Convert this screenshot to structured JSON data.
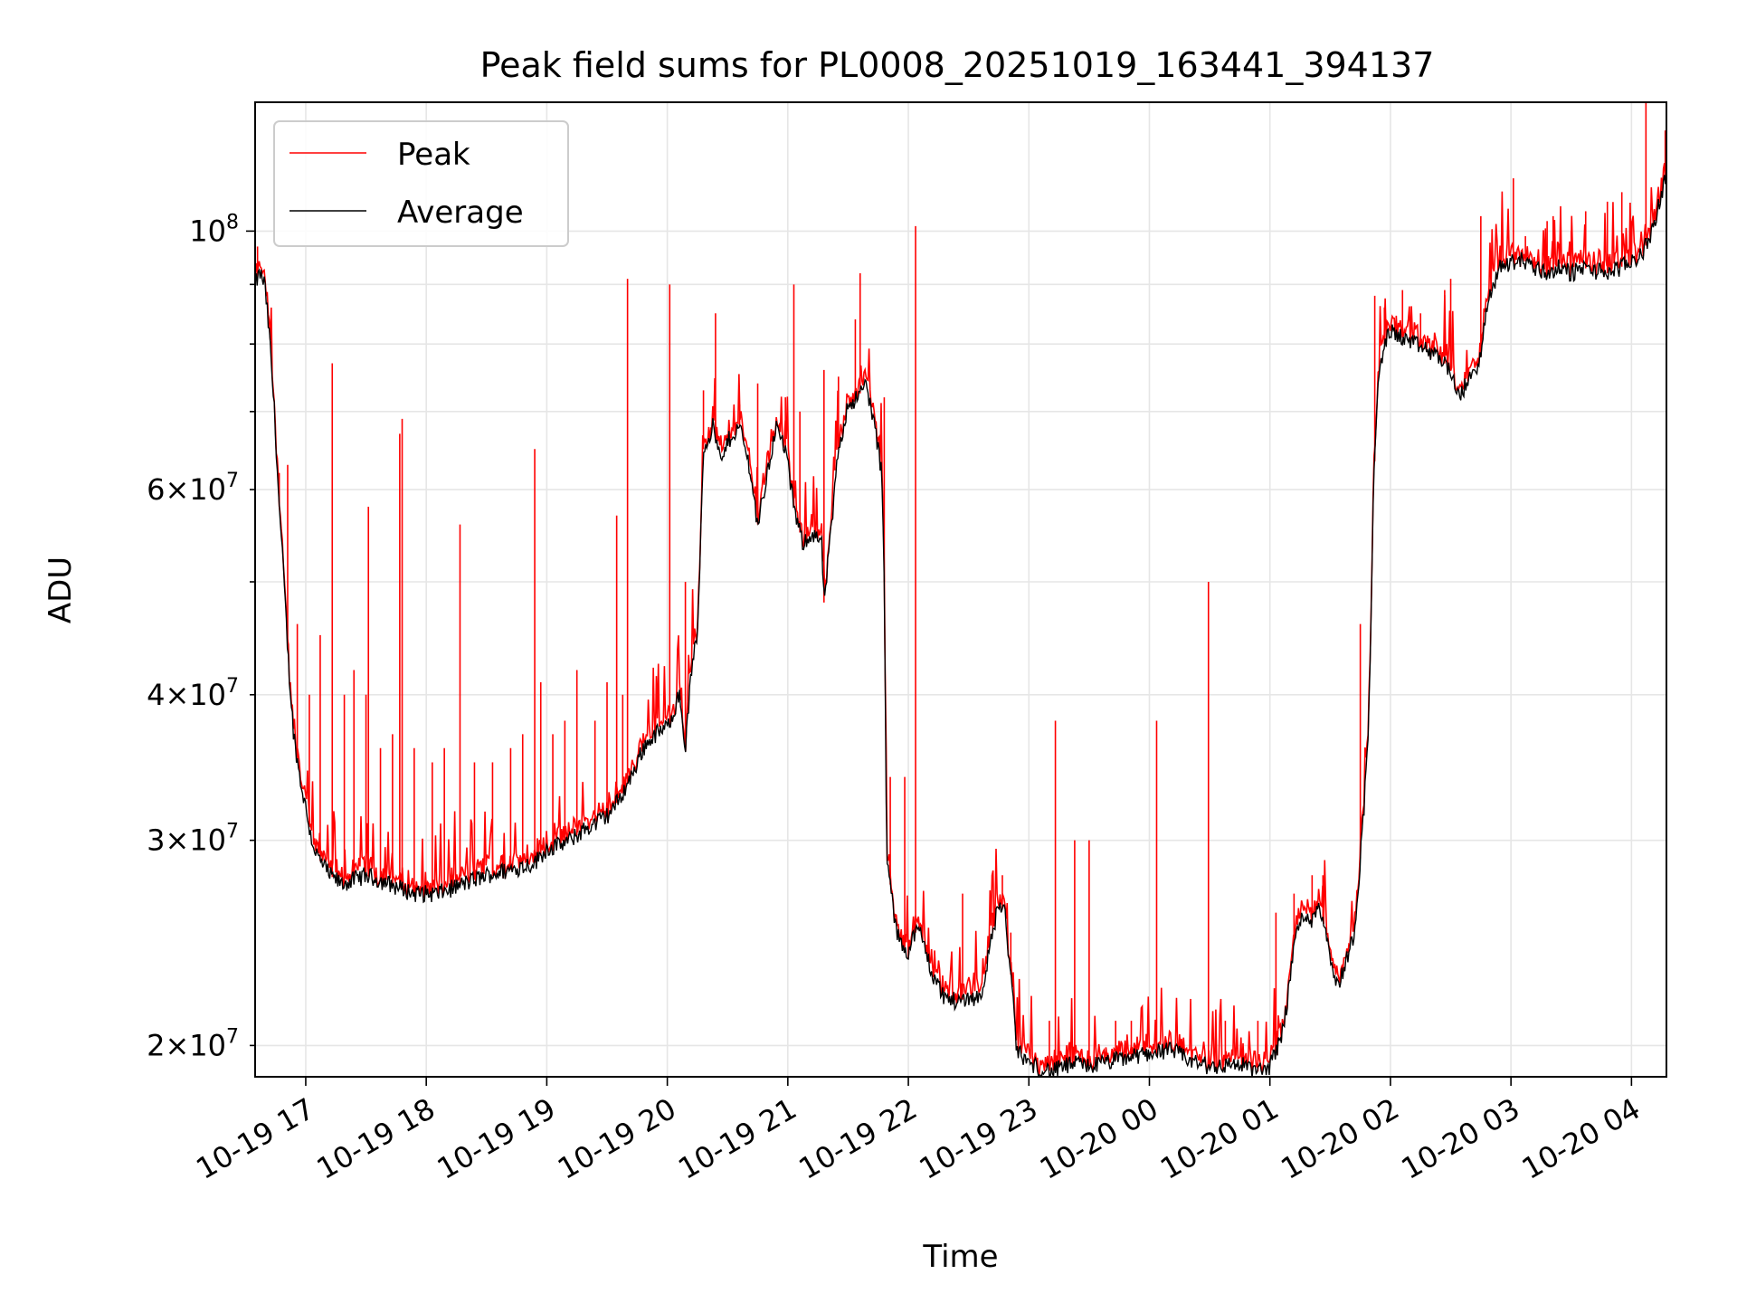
{
  "chart_data": {
    "type": "line",
    "title": "Peak field sums for PL0008_20251019_163441_394137",
    "xlabel": "Time",
    "ylabel": "ADU",
    "yscale": "log",
    "xlim_hours": [
      16.58,
      28.29
    ],
    "ylim": [
      18800000,
      129000000
    ],
    "grid": true,
    "legend_position": "upper-left",
    "x_ticks": [
      {
        "h": 17,
        "label": "10-19 17"
      },
      {
        "h": 18,
        "label": "10-19 18"
      },
      {
        "h": 19,
        "label": "10-19 19"
      },
      {
        "h": 20,
        "label": "10-19 20"
      },
      {
        "h": 21,
        "label": "10-19 21"
      },
      {
        "h": 22,
        "label": "10-19 22"
      },
      {
        "h": 23,
        "label": "10-19 23"
      },
      {
        "h": 24,
        "label": "10-20 00"
      },
      {
        "h": 25,
        "label": "10-20 01"
      },
      {
        "h": 26,
        "label": "10-20 02"
      },
      {
        "h": 27,
        "label": "10-20 03"
      },
      {
        "h": 28,
        "label": "10-20 04"
      }
    ],
    "y_major_ticks": [
      {
        "value": 100000000,
        "mantissa": "",
        "exponent": "8"
      }
    ],
    "y_minor_ticks": [
      {
        "value": 20000000,
        "mantissa": "2",
        "exponent": "7"
      },
      {
        "value": 30000000,
        "mantissa": "3",
        "exponent": "7"
      },
      {
        "value": 40000000,
        "mantissa": "4",
        "exponent": "7"
      },
      {
        "value": 60000000,
        "mantissa": "6",
        "exponent": "7"
      }
    ],
    "y_unlabeled_minor_ticks": [
      50000000,
      70000000,
      80000000,
      90000000
    ],
    "series": [
      {
        "name": "Peak",
        "color": "#ff0000",
        "baseline_from": "Average",
        "spikes": [
          [
            16.6,
            97000000
          ],
          [
            16.78,
            62000000
          ],
          [
            16.85,
            63000000
          ],
          [
            16.93,
            46000000
          ],
          [
            17.03,
            40000000
          ],
          [
            17.12,
            45000000
          ],
          [
            17.22,
            77000000
          ],
          [
            17.32,
            40000000
          ],
          [
            17.4,
            42000000
          ],
          [
            17.5,
            40000000
          ],
          [
            17.52,
            58000000
          ],
          [
            17.62,
            36000000
          ],
          [
            17.72,
            37000000
          ],
          [
            17.78,
            67000000
          ],
          [
            17.8,
            69000000
          ],
          [
            17.9,
            36000000
          ],
          [
            18.05,
            35000000
          ],
          [
            18.15,
            36000000
          ],
          [
            18.28,
            56000000
          ],
          [
            18.4,
            35000000
          ],
          [
            18.55,
            35000000
          ],
          [
            18.7,
            36000000
          ],
          [
            18.8,
            37000000
          ],
          [
            18.9,
            65000000
          ],
          [
            18.95,
            41000000
          ],
          [
            19.05,
            37000000
          ],
          [
            19.15,
            38000000
          ],
          [
            19.25,
            42000000
          ],
          [
            19.4,
            38000000
          ],
          [
            19.5,
            41000000
          ],
          [
            19.58,
            57000000
          ],
          [
            19.63,
            40000000
          ],
          [
            19.67,
            91000000
          ],
          [
            20.02,
            90000000
          ],
          [
            20.15,
            50000000
          ],
          [
            20.3,
            73000000
          ],
          [
            20.4,
            85000000
          ],
          [
            20.6,
            71000000
          ],
          [
            20.75,
            74000000
          ],
          [
            20.98,
            72000000
          ],
          [
            21.05,
            90000000
          ],
          [
            21.1,
            70000000
          ],
          [
            21.3,
            76000000
          ],
          [
            21.42,
            75000000
          ],
          [
            21.56,
            84000000
          ],
          [
            21.6,
            92000000
          ],
          [
            21.8,
            72000000
          ],
          [
            21.85,
            34000000
          ],
          [
            21.97,
            34000000
          ],
          [
            22.06,
            101000000
          ],
          [
            22.45,
            27000000
          ],
          [
            22.7,
            26000000
          ],
          [
            22.78,
            28000000
          ],
          [
            22.85,
            25000000
          ],
          [
            23.17,
            21000000
          ],
          [
            23.22,
            38000000
          ],
          [
            23.38,
            30000000
          ],
          [
            23.5,
            30000000
          ],
          [
            23.72,
            21000000
          ],
          [
            23.85,
            21000000
          ],
          [
            24.06,
            38000000
          ],
          [
            24.49,
            50000000
          ],
          [
            24.63,
            21000000
          ],
          [
            24.9,
            21000000
          ],
          [
            25.05,
            26000000
          ],
          [
            25.2,
            27000000
          ],
          [
            25.35,
            28000000
          ],
          [
            25.44,
            28000000
          ],
          [
            25.75,
            46000000
          ],
          [
            25.87,
            88000000
          ],
          [
            25.95,
            86000000
          ],
          [
            26.1,
            89000000
          ],
          [
            26.25,
            85000000
          ],
          [
            26.45,
            89000000
          ],
          [
            26.5,
            91000000
          ],
          [
            26.75,
            103000000
          ],
          [
            27.02,
            111000000
          ],
          [
            27.12,
            99000000
          ],
          [
            27.3,
            102000000
          ],
          [
            27.35,
            103000000
          ],
          [
            27.5,
            100000000
          ],
          [
            27.62,
            104000000
          ],
          [
            27.8,
            106000000
          ],
          [
            27.92,
            108000000
          ],
          [
            28.0,
            102000000
          ],
          [
            28.12,
            129000000
          ],
          [
            28.28,
            122000000
          ]
        ]
      },
      {
        "name": "Average",
        "color": "#000000",
        "points": [
          [
            16.58,
            90000000
          ],
          [
            16.62,
            92000000
          ],
          [
            16.66,
            90000000
          ],
          [
            16.7,
            81000000
          ],
          [
            16.74,
            70000000
          ],
          [
            16.78,
            58000000
          ],
          [
            16.82,
            50000000
          ],
          [
            16.86,
            42000000
          ],
          [
            16.9,
            37000000
          ],
          [
            16.95,
            34000000
          ],
          [
            17.0,
            32000000
          ],
          [
            17.05,
            30000000
          ],
          [
            17.1,
            29000000
          ],
          [
            17.2,
            28000000
          ],
          [
            17.3,
            27500000
          ],
          [
            17.5,
            28000000
          ],
          [
            17.7,
            27500000
          ],
          [
            17.9,
            27000000
          ],
          [
            18.1,
            27000000
          ],
          [
            18.3,
            27500000
          ],
          [
            18.5,
            28000000
          ],
          [
            18.7,
            28300000
          ],
          [
            18.9,
            28700000
          ],
          [
            19.0,
            29500000
          ],
          [
            19.1,
            29700000
          ],
          [
            19.2,
            30000000
          ],
          [
            19.3,
            30600000
          ],
          [
            19.4,
            31000000
          ],
          [
            19.5,
            31500000
          ],
          [
            19.6,
            32500000
          ],
          [
            19.7,
            34000000
          ],
          [
            19.8,
            36000000
          ],
          [
            19.9,
            37000000
          ],
          [
            20.0,
            37500000
          ],
          [
            20.1,
            40000000
          ],
          [
            20.15,
            36000000
          ],
          [
            20.2,
            42000000
          ],
          [
            20.25,
            45000000
          ],
          [
            20.3,
            65000000
          ],
          [
            20.38,
            68000000
          ],
          [
            20.45,
            63000000
          ],
          [
            20.5,
            66000000
          ],
          [
            20.6,
            68000000
          ],
          [
            20.68,
            63000000
          ],
          [
            20.75,
            56000000
          ],
          [
            20.82,
            61000000
          ],
          [
            20.9,
            68000000
          ],
          [
            20.98,
            65000000
          ],
          [
            21.05,
            58000000
          ],
          [
            21.12,
            54000000
          ],
          [
            21.2,
            55000000
          ],
          [
            21.28,
            54000000
          ],
          [
            21.3,
            48000000
          ],
          [
            21.35,
            54000000
          ],
          [
            21.42,
            65000000
          ],
          [
            21.5,
            71000000
          ],
          [
            21.58,
            72000000
          ],
          [
            21.65,
            74000000
          ],
          [
            21.72,
            68000000
          ],
          [
            21.78,
            62000000
          ],
          [
            21.8,
            50000000
          ],
          [
            21.82,
            29000000
          ],
          [
            21.86,
            27000000
          ],
          [
            21.9,
            25000000
          ],
          [
            21.95,
            24500000
          ],
          [
            22.0,
            24000000
          ],
          [
            22.05,
            25000000
          ],
          [
            22.1,
            25000000
          ],
          [
            22.15,
            24000000
          ],
          [
            22.2,
            23000000
          ],
          [
            22.3,
            22000000
          ],
          [
            22.4,
            21800000
          ],
          [
            22.5,
            22000000
          ],
          [
            22.6,
            22000000
          ],
          [
            22.7,
            25000000
          ],
          [
            22.75,
            26500000
          ],
          [
            22.8,
            26000000
          ],
          [
            22.85,
            23000000
          ],
          [
            22.9,
            19800000
          ],
          [
            23.0,
            19300000
          ],
          [
            23.1,
            19100000
          ],
          [
            23.2,
            19000000
          ],
          [
            23.3,
            19200000
          ],
          [
            23.4,
            19300000
          ],
          [
            23.5,
            19200000
          ],
          [
            23.6,
            19300000
          ],
          [
            23.7,
            19400000
          ],
          [
            23.8,
            19500000
          ],
          [
            23.9,
            19600000
          ],
          [
            24.0,
            19700000
          ],
          [
            24.1,
            19800000
          ],
          [
            24.2,
            19800000
          ],
          [
            24.3,
            19500000
          ],
          [
            24.4,
            19300000
          ],
          [
            24.5,
            19200000
          ],
          [
            24.6,
            19200000
          ],
          [
            24.7,
            19300000
          ],
          [
            24.8,
            19200000
          ],
          [
            24.9,
            19000000
          ],
          [
            25.0,
            19200000
          ],
          [
            25.05,
            19800000
          ],
          [
            25.1,
            20500000
          ],
          [
            25.15,
            22000000
          ],
          [
            25.2,
            24500000
          ],
          [
            25.25,
            25500000
          ],
          [
            25.3,
            26000000
          ],
          [
            25.35,
            25500000
          ],
          [
            25.4,
            26500000
          ],
          [
            25.45,
            25500000
          ],
          [
            25.5,
            24000000
          ],
          [
            25.55,
            22500000
          ],
          [
            25.6,
            23000000
          ],
          [
            25.65,
            24000000
          ],
          [
            25.7,
            25000000
          ],
          [
            25.74,
            28000000
          ],
          [
            25.78,
            32000000
          ],
          [
            25.82,
            38000000
          ],
          [
            25.86,
            60000000
          ],
          [
            25.9,
            75000000
          ],
          [
            25.95,
            80000000
          ],
          [
            26.0,
            82000000
          ],
          [
            26.1,
            81000000
          ],
          [
            26.2,
            80000000
          ],
          [
            26.3,
            79000000
          ],
          [
            26.4,
            78000000
          ],
          [
            26.5,
            76000000
          ],
          [
            26.55,
            72000000
          ],
          [
            26.6,
            73000000
          ],
          [
            26.7,
            76000000
          ],
          [
            26.75,
            78000000
          ],
          [
            26.8,
            86000000
          ],
          [
            26.9,
            93000000
          ],
          [
            27.0,
            94000000
          ],
          [
            27.1,
            94500000
          ],
          [
            27.2,
            93000000
          ],
          [
            27.3,
            92000000
          ],
          [
            27.4,
            93000000
          ],
          [
            27.5,
            92000000
          ],
          [
            27.6,
            93000000
          ],
          [
            27.7,
            92500000
          ],
          [
            27.8,
            92000000
          ],
          [
            27.9,
            93000000
          ],
          [
            28.0,
            94000000
          ],
          [
            28.1,
            96000000
          ],
          [
            28.15,
            99000000
          ],
          [
            28.2,
            102000000
          ],
          [
            28.25,
            108000000
          ],
          [
            28.29,
            112000000
          ]
        ]
      }
    ]
  }
}
